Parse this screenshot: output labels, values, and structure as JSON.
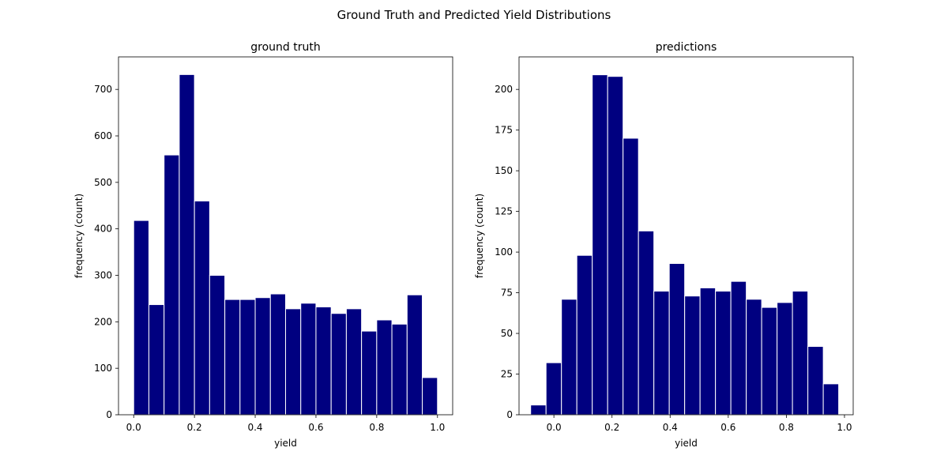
{
  "figure": {
    "title": "Ground Truth and Predicted Yield Distributions"
  },
  "chart_data": [
    {
      "type": "bar",
      "title": "ground truth",
      "xlabel": "yield",
      "ylabel": "frequency (count)",
      "xlim": [
        -0.05,
        1.05
      ],
      "ylim": [
        0,
        770
      ],
      "xticks": [
        0.0,
        0.2,
        0.4,
        0.6,
        0.8,
        1.0
      ],
      "xtick_labels": [
        "0.0",
        "0.2",
        "0.4",
        "0.6",
        "0.8",
        "1.0"
      ],
      "yticks": [
        0,
        100,
        200,
        300,
        400,
        500,
        600,
        700
      ],
      "ytick_labels": [
        "0",
        "100",
        "200",
        "300",
        "400",
        "500",
        "600",
        "700"
      ],
      "bin_edges": [
        0.0,
        0.05,
        0.1,
        0.15,
        0.2,
        0.25,
        0.3,
        0.35,
        0.4,
        0.45,
        0.5,
        0.55,
        0.6,
        0.65,
        0.7,
        0.75,
        0.8,
        0.85,
        0.9,
        0.95,
        1.0
      ],
      "values": [
        418,
        237,
        559,
        732,
        460,
        300,
        248,
        248,
        252,
        260,
        228,
        240,
        232,
        218,
        228,
        180,
        204,
        195,
        258,
        80
      ],
      "bar_color": "#000080",
      "grid": false
    },
    {
      "type": "bar",
      "title": "predictions",
      "xlabel": "yield",
      "ylabel": "frequency (count)",
      "xlim": [
        -0.12,
        1.03
      ],
      "ylim": [
        0,
        220
      ],
      "xticks": [
        0.0,
        0.2,
        0.4,
        0.6,
        0.8,
        1.0
      ],
      "xtick_labels": [
        "0.0",
        "0.2",
        "0.4",
        "0.6",
        "0.8",
        "1.0"
      ],
      "yticks": [
        0,
        25,
        50,
        75,
        100,
        125,
        150,
        175,
        200
      ],
      "ytick_labels": [
        "0",
        "25",
        "50",
        "75",
        "100",
        "125",
        "150",
        "175",
        "200"
      ],
      "bin_edges": [
        -0.08,
        -0.027,
        0.026,
        0.079,
        0.132,
        0.185,
        0.238,
        0.291,
        0.344,
        0.397,
        0.45,
        0.503,
        0.556,
        0.609,
        0.662,
        0.715,
        0.768,
        0.821,
        0.874,
        0.927,
        0.98
      ],
      "values": [
        6,
        32,
        71,
        98,
        209,
        208,
        170,
        113,
        76,
        93,
        73,
        78,
        76,
        82,
        71,
        66,
        69,
        76,
        42,
        19
      ],
      "bar_color": "#000080",
      "grid": false
    }
  ]
}
